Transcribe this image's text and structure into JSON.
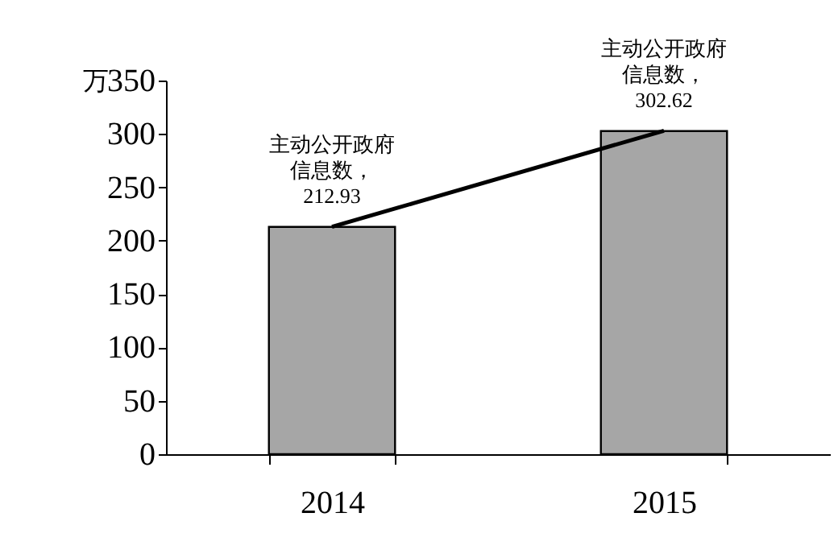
{
  "chart_data": {
    "type": "bar",
    "ylabel": "万",
    "categories": [
      "2014",
      "2015"
    ],
    "series": [
      {
        "color": "#a6a6a6",
        "values": [
          212.93,
          302.62
        ],
        "value_labels": [
          "主动公开政府信息数，212.93",
          "主动公开政府信息数，302.62"
        ]
      },
      {
        "type": "line",
        "color": "#000000",
        "values": [
          213,
          303
        ]
      }
    ],
    "ylim": [
      0,
      350
    ],
    "yticks": [
      0,
      50,
      100,
      150,
      200,
      250,
      300,
      350
    ],
    "grid": false
  }
}
